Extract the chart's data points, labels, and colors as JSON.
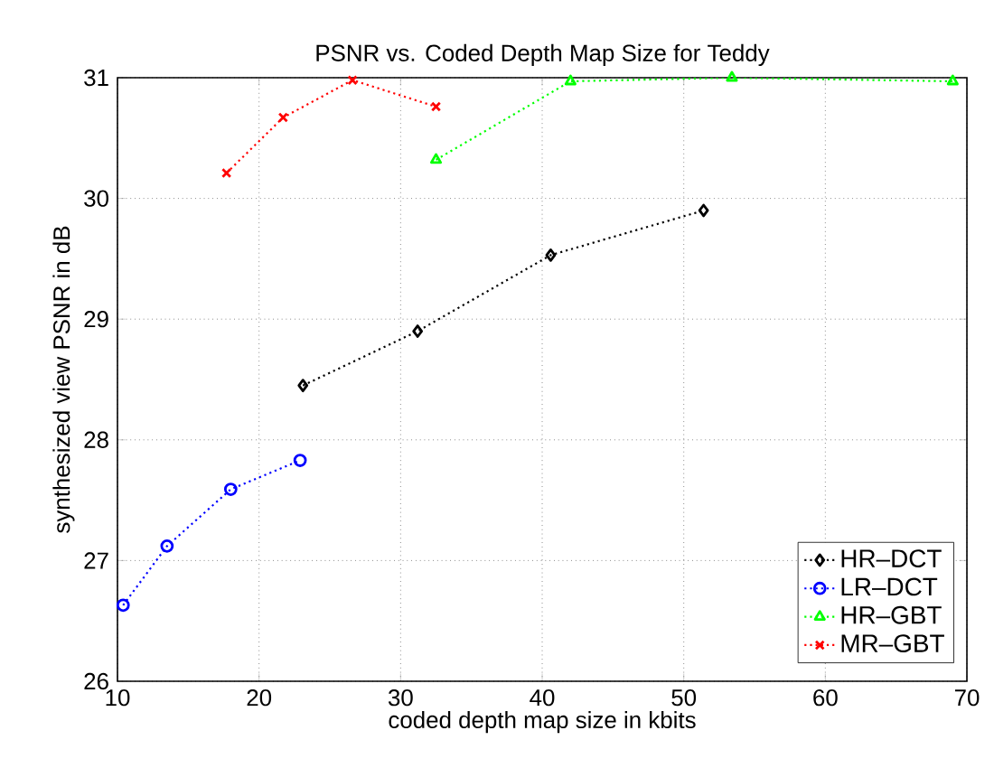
{
  "chart_data": {
    "type": "line",
    "title": "PSNR vs. Coded Depth Map Size for Teddy",
    "xlabel": "coded depth map size in kbits",
    "ylabel": "synthesized view PSNR in dB",
    "xlim": [
      10,
      70
    ],
    "xticks": [
      10,
      20,
      30,
      40,
      50,
      60,
      70
    ],
    "ylim": [
      26,
      31
    ],
    "yticks": [
      26,
      27,
      28,
      29,
      30,
      31
    ],
    "grid": true,
    "legend": "bottom right",
    "line_style": "dotted",
    "series": [
      {
        "name": "HR–DCT",
        "color": "#000000",
        "marker": "diamond",
        "x": [
          23.1,
          31.2,
          40.6,
          51.4
        ],
        "values": [
          28.45,
          28.9,
          29.53,
          29.9
        ]
      },
      {
        "name": "LR–DCT",
        "color": "#0000ff",
        "marker": "circle",
        "x": [
          10.4,
          13.5,
          18.0,
          22.9
        ],
        "values": [
          26.63,
          27.12,
          27.59,
          27.83
        ]
      },
      {
        "name": "HR–GBT",
        "color": "#00ff00",
        "marker": "triangle",
        "x": [
          32.5,
          42.0,
          53.4,
          69.0
        ],
        "values": [
          30.32,
          30.97,
          31.0,
          30.97
        ]
      },
      {
        "name": "MR–GBT",
        "color": "#ff0000",
        "marker": "cross",
        "x": [
          17.7,
          21.7,
          26.6,
          32.5
        ],
        "values": [
          30.21,
          30.67,
          30.98,
          30.76
        ]
      }
    ]
  }
}
